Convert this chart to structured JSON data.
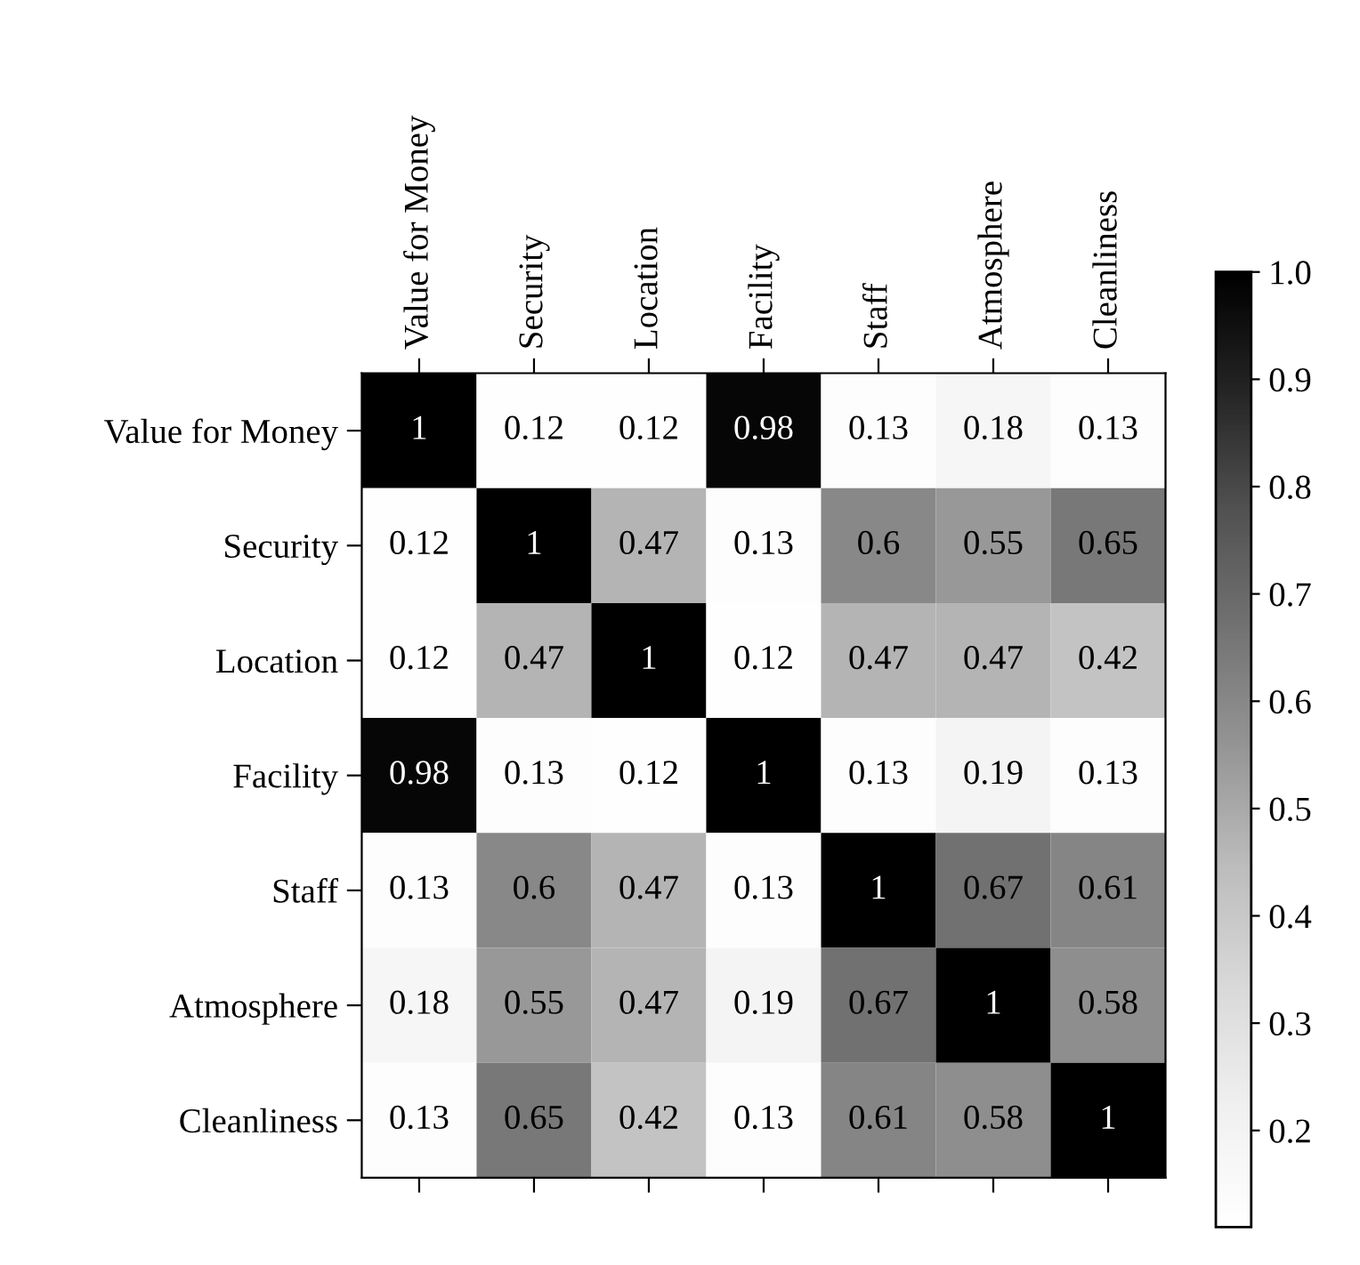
{
  "chart_data": {
    "type": "heatmap",
    "categories": [
      "Value for Money",
      "Security",
      "Location",
      "Facility",
      "Staff",
      "Atmosphere",
      "Cleanliness"
    ],
    "y_categories": [
      "Value for Money",
      "Security",
      "Location",
      "Facility",
      "Staff",
      "Atmosphere",
      "Cleanliness"
    ],
    "cells": [
      [
        1,
        0.12,
        0.12,
        0.98,
        0.13,
        0.18,
        0.13
      ],
      [
        0.12,
        1,
        0.47,
        0.13,
        0.6,
        0.55,
        0.65
      ],
      [
        0.12,
        0.47,
        1,
        0.12,
        0.47,
        0.47,
        0.42
      ],
      [
        0.98,
        0.13,
        0.12,
        1,
        0.13,
        0.19,
        0.13
      ],
      [
        0.13,
        0.6,
        0.47,
        0.13,
        1,
        0.67,
        0.61
      ],
      [
        0.18,
        0.55,
        0.47,
        0.19,
        0.67,
        1,
        0.58
      ],
      [
        0.13,
        0.65,
        0.42,
        0.13,
        0.61,
        0.58,
        1
      ]
    ],
    "clim": [
      0.11,
      1.0
    ],
    "cticks": [
      {
        "value": 0.2,
        "label": "0.2"
      },
      {
        "value": 0.3,
        "label": "0.3"
      },
      {
        "value": 0.4,
        "label": "0.4"
      },
      {
        "value": 0.5,
        "label": "0.5"
      },
      {
        "value": 0.6,
        "label": "0.6"
      },
      {
        "value": 0.7,
        "label": "0.7"
      },
      {
        "value": 0.8,
        "label": "0.8"
      },
      {
        "value": 0.9,
        "label": "0.9"
      },
      {
        "value": 1.0,
        "label": "1.0"
      }
    ],
    "data_labels": true
  }
}
